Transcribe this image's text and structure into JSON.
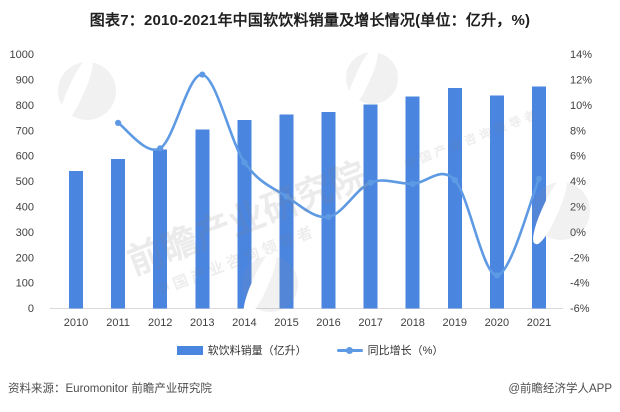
{
  "title": "图表7：2010-2021年中国软饮料销量及增长情况(单位：亿升，%)",
  "legend": [
    {
      "label": "软饮料销量（亿升）",
      "type": "bar"
    },
    {
      "label": "同比增长（%）",
      "type": "line"
    }
  ],
  "footer": {
    "source": "资料来源：Euromonitor 前瞻产业研究院",
    "credit": "@前瞻经济学人APP"
  },
  "watermark": {
    "brand": "前瞻产业研究院",
    "tagline": "中国产业咨询领导者"
  },
  "colors": {
    "bar": "#4a85e0",
    "line": "#5e9ae4",
    "axis_line": "#d9d9d9",
    "tick_text": "#3f3f3f",
    "title_text": "#1f1f1f"
  },
  "chart_data": {
    "type": "bar+line combo",
    "title": "图表7：2010-2021年中国软饮料销量及增长情况(单位：亿升，%)",
    "categories": [
      "2010",
      "2011",
      "2012",
      "2013",
      "2014",
      "2015",
      "2016",
      "2017",
      "2018",
      "2019",
      "2020",
      "2021"
    ],
    "series": [
      {
        "name": "软饮料销量（亿升）",
        "type": "bar",
        "axis": "left",
        "values": [
          541,
          588,
          626,
          704,
          742,
          763,
          772,
          802,
          833,
          867,
          838,
          873
        ]
      },
      {
        "name": "同比增长（%）",
        "type": "line",
        "axis": "right",
        "values": [
          null,
          8.6,
          6.6,
          12.4,
          5.5,
          2.8,
          1.2,
          3.9,
          3.8,
          4.1,
          -3.4,
          4.2
        ]
      }
    ],
    "left_axis": {
      "label": "亿升",
      "min": 0,
      "max": 1000,
      "ticks": [
        0,
        100,
        200,
        300,
        400,
        500,
        600,
        700,
        800,
        900,
        1000
      ]
    },
    "right_axis": {
      "label": "%",
      "min": -6,
      "max": 14,
      "ticks": [
        -6,
        -4,
        -2,
        0,
        2,
        4,
        6,
        8,
        10,
        12,
        14
      ],
      "suffix": "%"
    },
    "grid": false,
    "legend_position": "bottom",
    "line_smooth": true
  }
}
